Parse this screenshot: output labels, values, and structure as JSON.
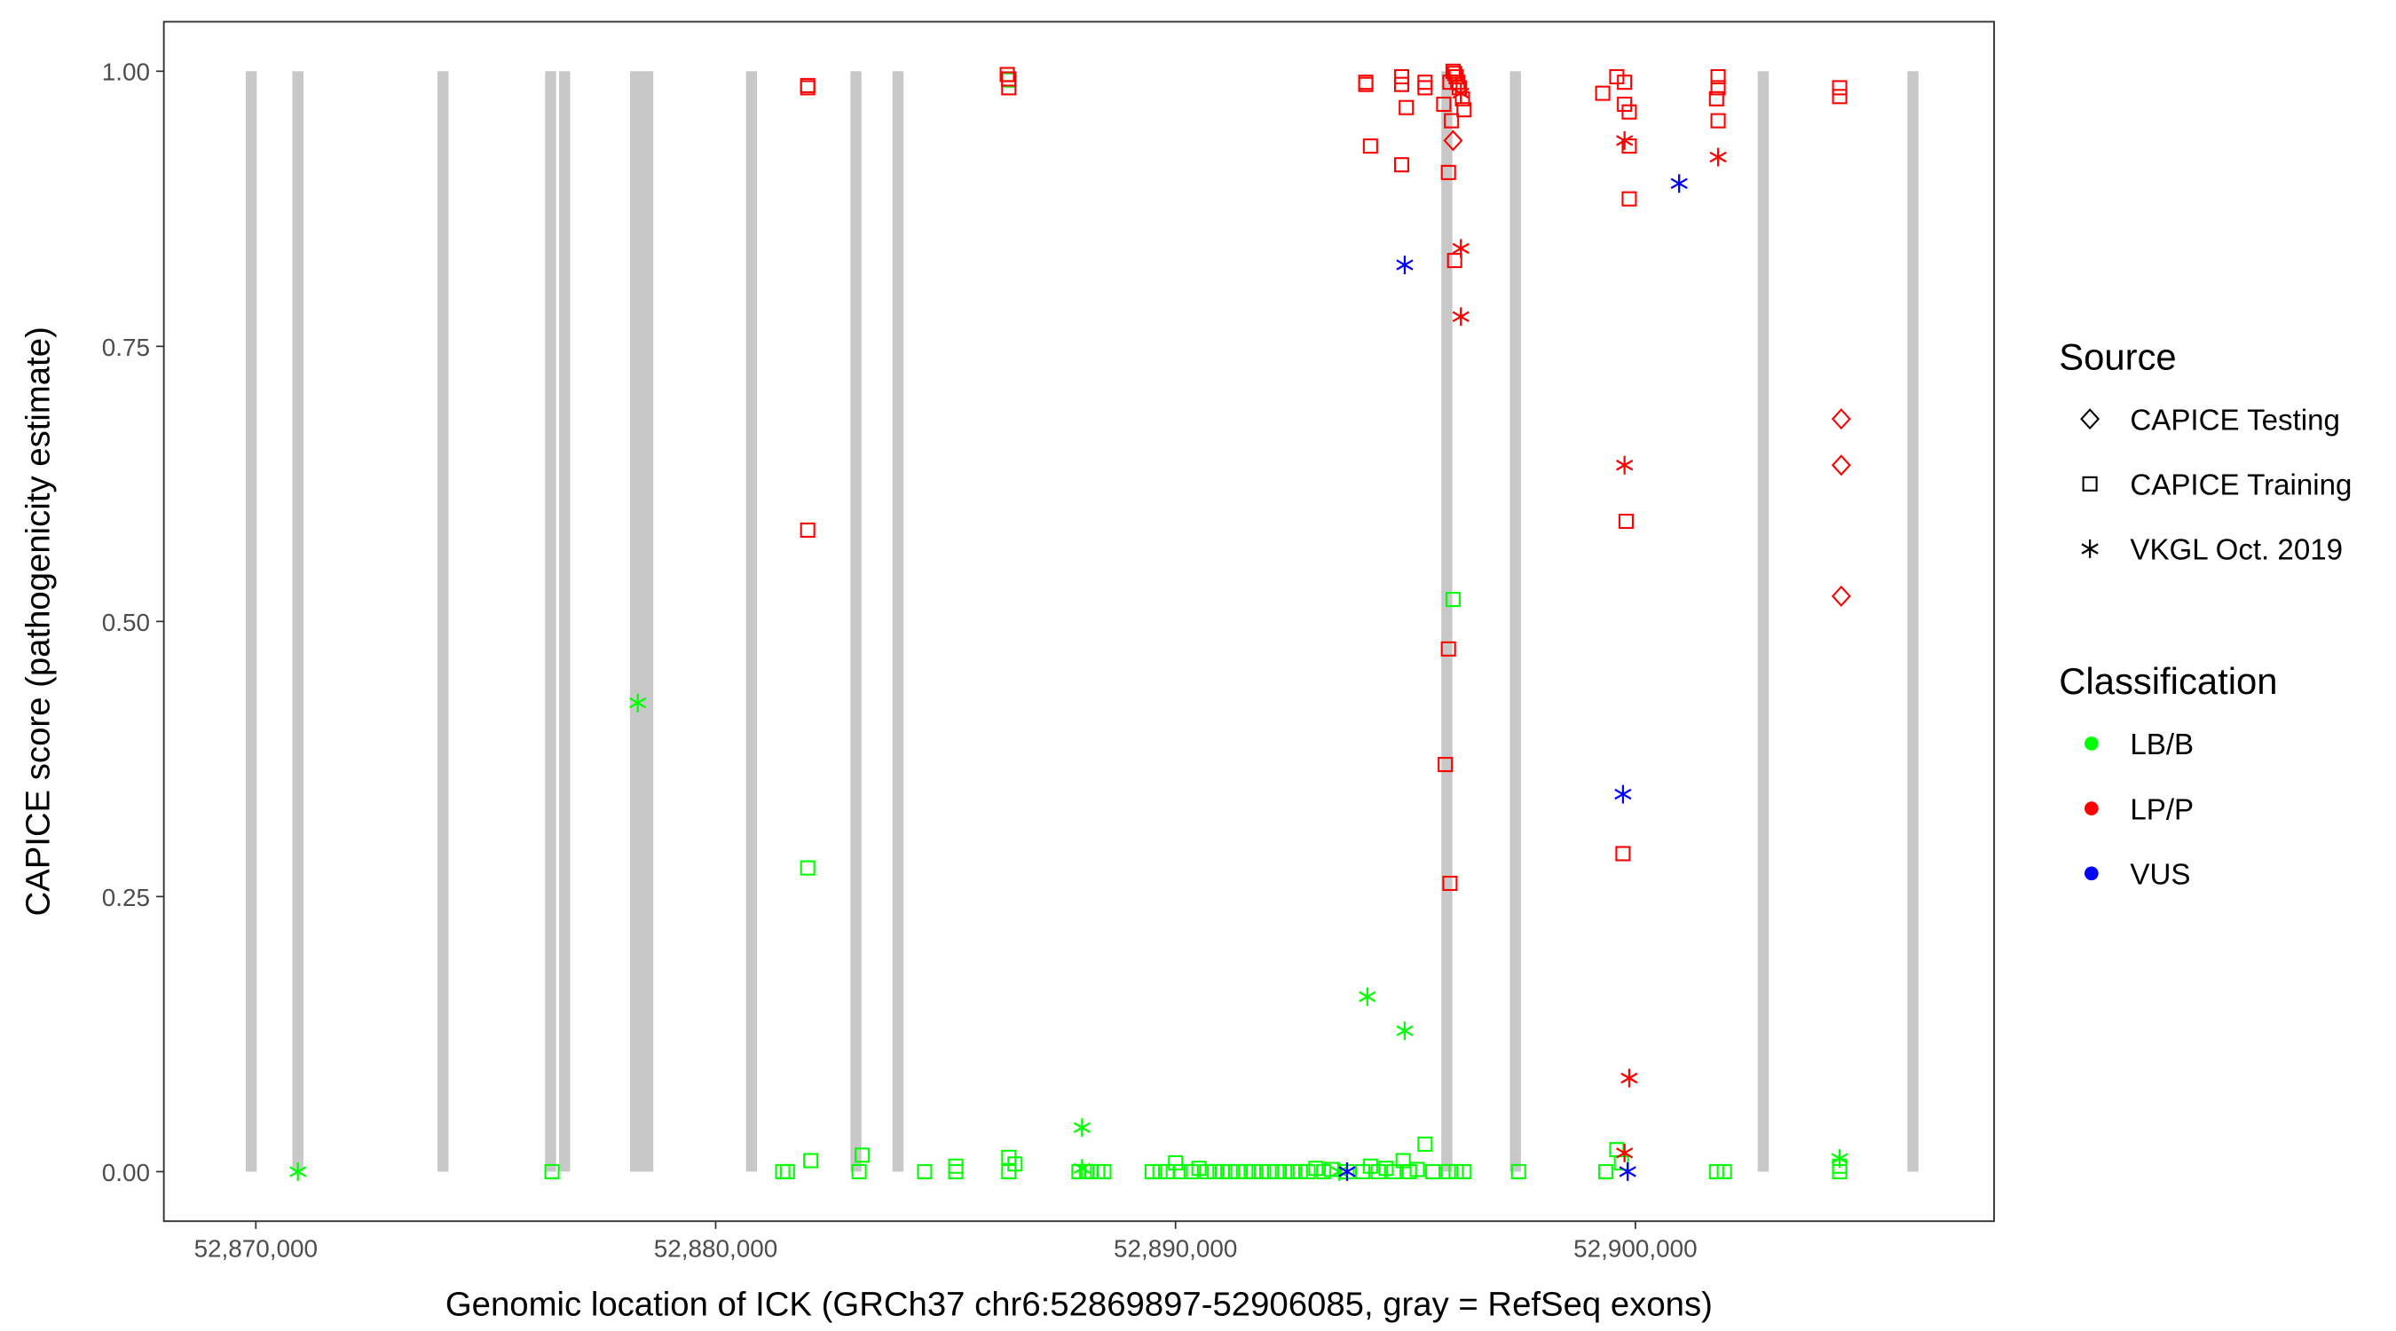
{
  "chart_data": {
    "type": "scatter",
    "xlabel": "Genomic location of ICK (GRCh37 chr6:52869897-52906085, gray = RefSeq exons)",
    "ylabel": "CAPICE score (pathogenicity estimate)",
    "xlim": [
      52868000,
      52907800
    ],
    "ylim": [
      -0.045,
      1.045
    ],
    "x_ticks": [
      52870000,
      52880000,
      52890000,
      52900000
    ],
    "x_tick_labels": [
      "52,870,000",
      "52,880,000",
      "52,890,000",
      "52,900,000"
    ],
    "y_ticks": [
      0,
      0.25,
      0.5,
      0.75,
      1.0
    ],
    "y_tick_labels": [
      "0.00",
      "0.25",
      "0.50",
      "0.75",
      "1.00"
    ],
    "grid": false,
    "exons": [
      [
        52869780,
        52870020
      ],
      [
        52870795,
        52871035
      ],
      [
        52873950,
        52874190
      ],
      [
        52876290,
        52876530
      ],
      [
        52876595,
        52876835
      ],
      [
        52878136,
        52878644
      ],
      [
        52880660,
        52880900
      ],
      [
        52882930,
        52883170
      ],
      [
        52883845,
        52884085
      ],
      [
        52895780,
        52896020
      ],
      [
        52897270,
        52897510
      ],
      [
        52902660,
        52902900
      ],
      [
        52905915,
        52906155
      ]
    ],
    "exon_color": "#c8c8c8",
    "legend": {
      "position": "right",
      "source_title": "Source",
      "sources": [
        {
          "key": "testing",
          "label": "CAPICE Testing",
          "shape": "diamond"
        },
        {
          "key": "training",
          "label": "CAPICE Training",
          "shape": "square"
        },
        {
          "key": "vkgl",
          "label": "VKGL Oct. 2019",
          "shape": "asterisk"
        }
      ],
      "class_title": "Classification",
      "classes": [
        {
          "key": "LB/B",
          "label": "LB/B",
          "color": "#00ff00"
        },
        {
          "key": "LP/P",
          "label": "LP/P",
          "color": "#ff0000"
        },
        {
          "key": "VUS",
          "label": "VUS",
          "color": "#0000ff"
        }
      ]
    },
    "point_fields": [
      "position",
      "score",
      "source",
      "classification"
    ],
    "points": [
      [
        52870915,
        0.0,
        "vkgl",
        "LB/B"
      ],
      [
        52878306,
        0.426,
        "vkgl",
        "LB/B"
      ],
      [
        52876441,
        0.0,
        "training",
        "LB/B"
      ],
      [
        52881458,
        0.0,
        "training",
        "LB/B"
      ],
      [
        52881560,
        0.0,
        "training",
        "LB/B"
      ],
      [
        52882001,
        0.276,
        "training",
        "LB/B"
      ],
      [
        52882068,
        0.01,
        "training",
        "LB/B"
      ],
      [
        52883119,
        0.0,
        "training",
        "LB/B"
      ],
      [
        52883187,
        0.015,
        "training",
        "LB/B"
      ],
      [
        52884543,
        0.0,
        "training",
        "LB/B"
      ],
      [
        52885221,
        0.005,
        "training",
        "LB/B"
      ],
      [
        52885221,
        0.0,
        "training",
        "LB/B"
      ],
      [
        52886340,
        0.997,
        "training",
        "LB/B"
      ],
      [
        52886374,
        0.992,
        "training",
        "LB/B"
      ],
      [
        52886374,
        0.013,
        "training",
        "LB/B"
      ],
      [
        52886374,
        0.0,
        "training",
        "LB/B"
      ],
      [
        52886509,
        0.007,
        "training",
        "LB/B"
      ],
      [
        52887899,
        0.0,
        "training",
        "LB/B"
      ],
      [
        52887967,
        0.04,
        "vkgl",
        "LB/B"
      ],
      [
        52887967,
        0.003,
        "vkgl",
        "LB/B"
      ],
      [
        52888069,
        0.0,
        "training",
        "LB/B"
      ],
      [
        52888170,
        0.0,
        "training",
        "LB/B"
      ],
      [
        52888306,
        0.0,
        "training",
        "LB/B"
      ],
      [
        52888442,
        0.0,
        "training",
        "LB/B"
      ],
      [
        52889493,
        0.0,
        "training",
        "LB/B"
      ],
      [
        52889662,
        0.0,
        "training",
        "LB/B"
      ],
      [
        52889832,
        0.0,
        "training",
        "LB/B"
      ],
      [
        52890001,
        0.008,
        "training",
        "LB/B"
      ],
      [
        52890103,
        0.0,
        "training",
        "LB/B"
      ],
      [
        52890340,
        0.0,
        "training",
        "LB/B"
      ],
      [
        52890510,
        0.003,
        "training",
        "LB/B"
      ],
      [
        52890679,
        0.0,
        "training",
        "LB/B"
      ],
      [
        52890849,
        0.0,
        "training",
        "LB/B"
      ],
      [
        52891018,
        0.0,
        "training",
        "LB/B"
      ],
      [
        52891188,
        0.0,
        "training",
        "LB/B"
      ],
      [
        52891357,
        0.0,
        "training",
        "LB/B"
      ],
      [
        52891527,
        0.0,
        "training",
        "LB/B"
      ],
      [
        52891696,
        0.0,
        "training",
        "LB/B"
      ],
      [
        52891866,
        0.0,
        "training",
        "LB/B"
      ],
      [
        52892035,
        0.0,
        "training",
        "LB/B"
      ],
      [
        52892205,
        0.0,
        "training",
        "LB/B"
      ],
      [
        52892374,
        0.0,
        "training",
        "LB/B"
      ],
      [
        52892544,
        0.0,
        "training",
        "LB/B"
      ],
      [
        52892713,
        0.0,
        "training",
        "LB/B"
      ],
      [
        52892883,
        0.0,
        "training",
        "LB/B"
      ],
      [
        52893052,
        0.003,
        "training",
        "LB/B"
      ],
      [
        52893222,
        0.0,
        "training",
        "LB/B"
      ],
      [
        52893391,
        0.002,
        "training",
        "LB/B"
      ],
      [
        52893561,
        0.0,
        "vkgl",
        "LB/B"
      ],
      [
        52893730,
        0.0,
        "training",
        "LB/B"
      ],
      [
        52894069,
        0.0,
        "training",
        "LB/B"
      ],
      [
        52894171,
        0.159,
        "vkgl",
        "LB/B"
      ],
      [
        52894239,
        0.005,
        "training",
        "LB/B"
      ],
      [
        52894408,
        0.0,
        "training",
        "LB/B"
      ],
      [
        52894578,
        0.003,
        "training",
        "LB/B"
      ],
      [
        52894747,
        0.0,
        "training",
        "LB/B"
      ],
      [
        52894950,
        0.01,
        "training",
        "LB/B"
      ],
      [
        52894984,
        0.128,
        "vkgl",
        "LB/B"
      ],
      [
        52895086,
        0.0,
        "training",
        "LB/B"
      ],
      [
        52895256,
        0.002,
        "training",
        "LB/B"
      ],
      [
        52895425,
        0.025,
        "training",
        "LB/B"
      ],
      [
        52895595,
        0.0,
        "training",
        "LB/B"
      ],
      [
        52895934,
        0.0,
        "training",
        "LB/B"
      ],
      [
        52896035,
        0.52,
        "training",
        "LB/B"
      ],
      [
        52896103,
        0.0,
        "training",
        "LB/B"
      ],
      [
        52896273,
        0.0,
        "training",
        "LB/B"
      ],
      [
        52897459,
        0.0,
        "training",
        "LB/B"
      ],
      [
        52899357,
        0.0,
        "training",
        "LB/B"
      ],
      [
        52899595,
        0.02,
        "training",
        "LB/B"
      ],
      [
        52899696,
        0.008,
        "training",
        "LB/B"
      ],
      [
        52901764,
        0.0,
        "training",
        "LB/B"
      ],
      [
        52901934,
        0.0,
        "training",
        "LB/B"
      ],
      [
        52904442,
        0.012,
        "vkgl",
        "LB/B"
      ],
      [
        52904442,
        0.005,
        "training",
        "LB/B"
      ],
      [
        52904442,
        0.0,
        "training",
        "LB/B"
      ],
      [
        52882001,
        0.985,
        "training",
        "LP/P"
      ],
      [
        52882001,
        0.987,
        "training",
        "LP/P"
      ],
      [
        52882001,
        0.583,
        "training",
        "LP/P"
      ],
      [
        52886340,
        0.997,
        "training",
        "LP/P"
      ],
      [
        52886374,
        0.993,
        "training",
        "LP/P"
      ],
      [
        52886374,
        0.985,
        "training",
        "LP/P"
      ],
      [
        52894137,
        0.99,
        "training",
        "LP/P"
      ],
      [
        52894137,
        0.988,
        "training",
        "LP/P"
      ],
      [
        52894239,
        0.932,
        "training",
        "LP/P"
      ],
      [
        52894917,
        0.995,
        "training",
        "LP/P"
      ],
      [
        52894917,
        0.988,
        "training",
        "LP/P"
      ],
      [
        52894917,
        0.915,
        "training",
        "LP/P"
      ],
      [
        52895018,
        0.967,
        "training",
        "LP/P"
      ],
      [
        52895425,
        0.99,
        "training",
        "LP/P"
      ],
      [
        52895425,
        0.985,
        "training",
        "LP/P"
      ],
      [
        52895832,
        0.97,
        "training",
        "LP/P"
      ],
      [
        52895934,
        0.908,
        "training",
        "LP/P"
      ],
      [
        52895967,
        0.99,
        "training",
        "LP/P"
      ],
      [
        52896001,
        0.955,
        "training",
        "LP/P"
      ],
      [
        52896035,
        1.0,
        "training",
        "LP/P"
      ],
      [
        52896069,
        0.998,
        "training",
        "LP/P"
      ],
      [
        52896103,
        0.995,
        "training",
        "LP/P"
      ],
      [
        52896137,
        0.99,
        "training",
        "LP/P"
      ],
      [
        52896171,
        0.985,
        "training",
        "LP/P"
      ],
      [
        52896205,
        0.98,
        "vkgl",
        "LP/P"
      ],
      [
        52896239,
        0.975,
        "training",
        "LP/P"
      ],
      [
        52896273,
        0.965,
        "training",
        "LP/P"
      ],
      [
        52896035,
        0.937,
        "testing",
        "LP/P"
      ],
      [
        52896069,
        0.828,
        "training",
        "LP/P"
      ],
      [
        52896205,
        0.839,
        "vkgl",
        "LP/P"
      ],
      [
        52896205,
        0.777,
        "vkgl",
        "LP/P"
      ],
      [
        52895934,
        0.475,
        "training",
        "LP/P"
      ],
      [
        52895866,
        0.37,
        "training",
        "LP/P"
      ],
      [
        52895967,
        0.262,
        "training",
        "LP/P"
      ],
      [
        52899290,
        0.98,
        "training",
        "LP/P"
      ],
      [
        52899595,
        0.995,
        "training",
        "LP/P"
      ],
      [
        52899764,
        0.99,
        "training",
        "LP/P"
      ],
      [
        52899764,
        0.97,
        "training",
        "LP/P"
      ],
      [
        52899866,
        0.963,
        "training",
        "LP/P"
      ],
      [
        52899866,
        0.932,
        "training",
        "LP/P"
      ],
      [
        52899866,
        0.884,
        "training",
        "LP/P"
      ],
      [
        52899764,
        0.937,
        "vkgl",
        "LP/P"
      ],
      [
        52899764,
        0.642,
        "vkgl",
        "LP/P"
      ],
      [
        52899798,
        0.591,
        "training",
        "LP/P"
      ],
      [
        52899730,
        0.289,
        "training",
        "LP/P"
      ],
      [
        52899866,
        0.085,
        "vkgl",
        "LP/P"
      ],
      [
        52899764,
        0.017,
        "vkgl",
        "LP/P"
      ],
      [
        52901798,
        0.995,
        "training",
        "LP/P"
      ],
      [
        52901798,
        0.985,
        "training",
        "LP/P"
      ],
      [
        52901764,
        0.975,
        "training",
        "LP/P"
      ],
      [
        52901798,
        0.955,
        "training",
        "LP/P"
      ],
      [
        52901798,
        0.922,
        "vkgl",
        "LP/P"
      ],
      [
        52904442,
        0.985,
        "training",
        "LP/P"
      ],
      [
        52904442,
        0.977,
        "training",
        "LP/P"
      ],
      [
        52904476,
        0.684,
        "testing",
        "LP/P"
      ],
      [
        52904476,
        0.642,
        "testing",
        "LP/P"
      ],
      [
        52904476,
        0.523,
        "testing",
        "LP/P"
      ],
      [
        52894984,
        0.824,
        "vkgl",
        "VUS"
      ],
      [
        52900951,
        0.898,
        "vkgl",
        "VUS"
      ],
      [
        52899730,
        0.343,
        "vkgl",
        "VUS"
      ],
      [
        52899832,
        0.0,
        "vkgl",
        "VUS"
      ],
      [
        52893730,
        0.0,
        "vkgl",
        "VUS"
      ]
    ]
  }
}
